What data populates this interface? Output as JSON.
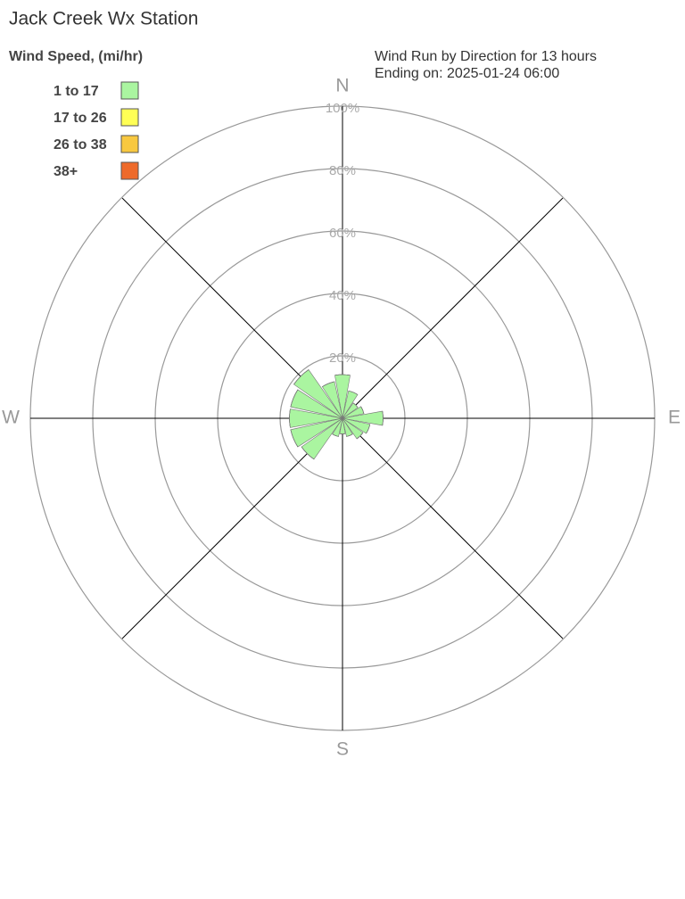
{
  "chart_data": {
    "type": "windrose",
    "title": "Jack Creek Wx Station",
    "legend_title": "Wind Speed, (mi/hr)",
    "annotations": [
      "Wind Run by Direction for 13 hours",
      "Ending on: 2025-01-24 06:00"
    ],
    "categories": [
      "N",
      null,
      null,
      null,
      "E",
      null,
      null,
      null,
      "S",
      null,
      null,
      null,
      "W",
      null,
      null,
      null
    ],
    "series": [
      {
        "name": "1 to 17",
        "color": "#aaf5a0",
        "values": [
          14,
          9,
          6,
          7,
          13,
          9,
          8,
          6,
          5,
          6,
          16,
          17,
          17,
          17,
          19,
          12
        ]
      },
      {
        "name": "17 to 26",
        "color": "#ffff55",
        "values": [
          0,
          0,
          0,
          0,
          0,
          0,
          0,
          0,
          0,
          0,
          0,
          0,
          0,
          0,
          0,
          0
        ]
      },
      {
        "name": "26 to 38",
        "color": "#f8c840",
        "values": [
          0,
          0,
          0,
          0,
          0,
          0,
          0,
          0,
          0,
          0,
          0,
          0,
          0,
          0,
          0,
          0
        ]
      },
      {
        "name": "38+",
        "color": "#ee6a2a",
        "values": [
          0,
          0,
          0,
          0,
          0,
          0,
          0,
          0,
          0,
          0,
          0,
          0,
          0,
          0,
          0,
          0
        ]
      }
    ],
    "rlim": [
      0,
      100
    ],
    "rticks": [
      {
        "value": 20,
        "label": "20%"
      },
      {
        "value": 40,
        "label": "40%"
      },
      {
        "value": 60,
        "label": "60%"
      },
      {
        "value": 80,
        "label": "80%"
      },
      {
        "value": 100,
        "label": "100%"
      }
    ]
  }
}
